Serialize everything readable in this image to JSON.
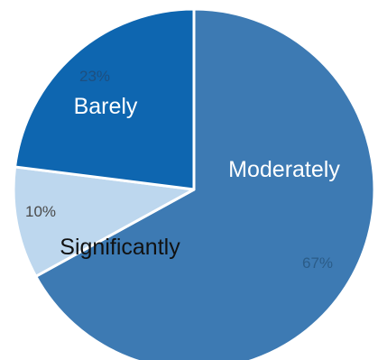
{
  "chart_data": {
    "type": "pie",
    "title": "",
    "start_angle_deg": 0,
    "direction": "clockwise",
    "legend": "none",
    "slices": [
      {
        "label": "Moderately",
        "value": 67,
        "value_label": "67%",
        "color": "#3d7ab3",
        "label_color": "#ffffff",
        "value_label_color": "#2b5c88"
      },
      {
        "label": "Significantly",
        "value": 10,
        "value_label": "10%",
        "color": "#bdd7ee",
        "label_color": "#111111",
        "value_label_color": "#4a4a4a"
      },
      {
        "label": "Barely",
        "value": 23,
        "value_label": "23%",
        "color": "#0e66b0",
        "label_color": "#ffffff",
        "value_label_color": "#1d4f80"
      }
    ]
  }
}
